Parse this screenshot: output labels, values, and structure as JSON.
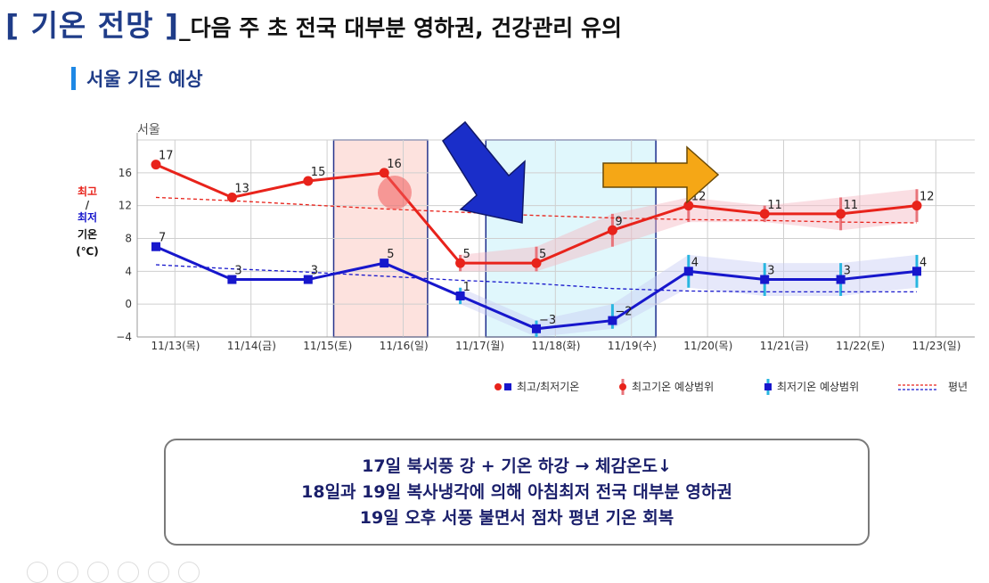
{
  "headline": {
    "title": "[ 기온 전망 ]",
    "subtitle": "_다음 주 초 전국 대부분 영하권, 건강관리 유의"
  },
  "section_title": "서울 기온 예상",
  "y_legend": [
    "최고",
    "/",
    "최저",
    "기온",
    "(℃)"
  ],
  "colors": {
    "high": "#e8231b",
    "low": "#1717cc",
    "high_band": "#f3b6c2",
    "low_band": "#c7cdf3",
    "weekend_bg": "#fde2de",
    "cold_bg": "#e0f7fc",
    "down_arrow": "#1a2ec9",
    "right_arrow": "#f5a716",
    "title": "#1f3c88"
  },
  "chart_data": {
    "type": "line",
    "title": "서울",
    "categories": [
      "11/13(목)",
      "11/14(금)",
      "11/15(토)",
      "11/16(일)",
      "11/17(월)",
      "11/18(화)",
      "11/19(수)",
      "11/20(목)",
      "11/21(금)",
      "11/22(토)",
      "11/23(일)"
    ],
    "ylim": [
      -4,
      20
    ],
    "yticks": [
      -4,
      0,
      4,
      8,
      12,
      16
    ],
    "series": [
      {
        "name": "최고기온",
        "values": [
          17,
          13,
          15,
          16,
          5,
          5,
          9,
          12,
          11,
          11,
          12
        ]
      },
      {
        "name": "최저기온",
        "values": [
          7,
          3,
          3,
          5,
          1,
          -3,
          -2,
          4,
          3,
          3,
          4
        ]
      }
    ],
    "normal": {
      "name": "평년",
      "high": [
        13,
        12.6,
        12.1,
        11.6,
        11.2,
        10.8,
        10.5,
        10.3,
        10.2,
        10.0,
        9.9
      ],
      "low": [
        4.8,
        4.3,
        3.9,
        3.4,
        2.9,
        2.5,
        1.9,
        1.6,
        1.5,
        1.5,
        1.5
      ]
    },
    "forecast_range": {
      "high": [
        null,
        null,
        null,
        null,
        [
          4,
          6
        ],
        [
          4,
          7
        ],
        [
          7,
          11
        ],
        [
          10,
          13
        ],
        [
          10,
          12
        ],
        [
          9,
          13
        ],
        [
          10,
          14
        ]
      ],
      "low": [
        null,
        null,
        null,
        null,
        [
          0,
          2
        ],
        [
          -4,
          -2
        ],
        [
          -3,
          0
        ],
        [
          2,
          6
        ],
        [
          1,
          5
        ],
        [
          1,
          5
        ],
        [
          2,
          6
        ]
      ]
    },
    "shaded_ranges": [
      {
        "from": "11/15(토)",
        "to": "11/16(일)",
        "kind": "weekend"
      },
      {
        "from": "11/17(월)",
        "to": "11/19(수)",
        "kind": "cold"
      }
    ],
    "legend": {
      "items": [
        "최고/최저기온",
        "최고기온 예상범위",
        "최저기온 예상범위",
        "평년"
      ],
      "position": "bottom-right"
    },
    "grid": true
  },
  "summary": [
    "17일 북서풍 강 + 기온 하강 → 체감온도↓",
    "18일과 19일 복사냉각에 의해 아침최저 전국 대부분 영하권",
    "19일 오후 서풍 불면서 점차 평년 기온 회복"
  ]
}
